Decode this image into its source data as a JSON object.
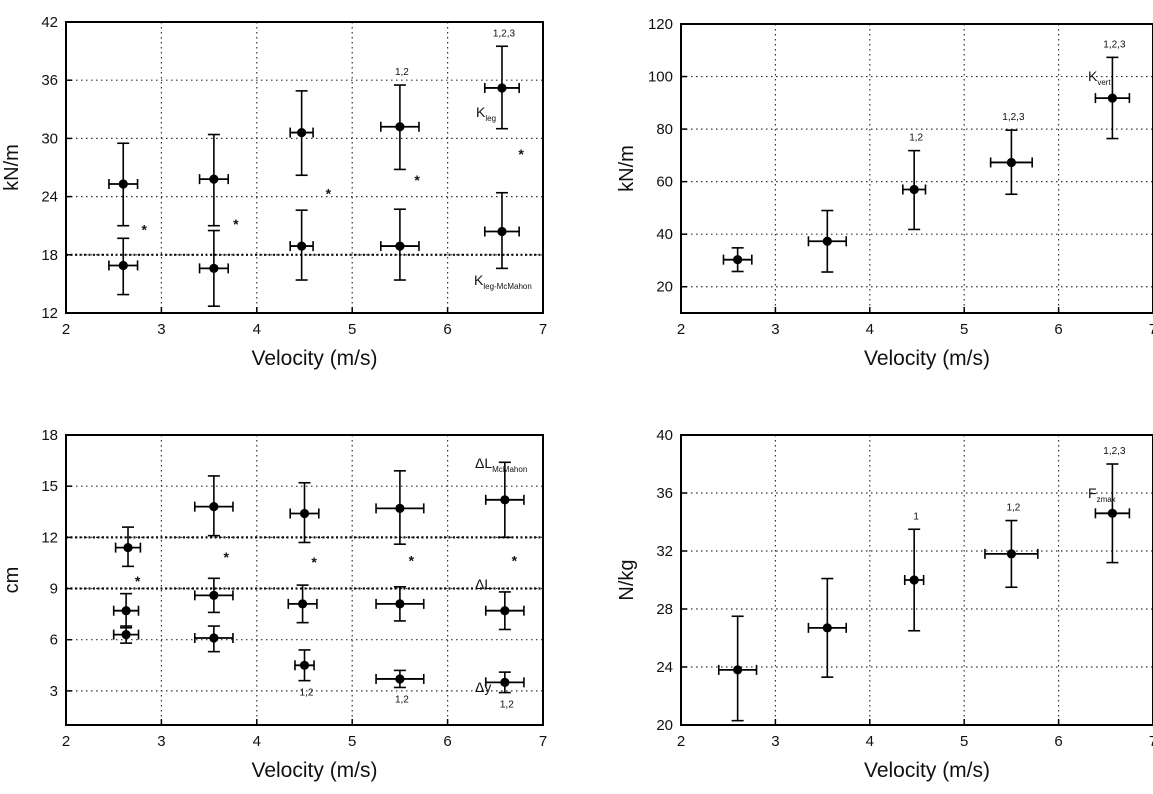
{
  "chart_data": [
    {
      "type": "scatter",
      "panel": "top-left",
      "xlabel": "Velocity (m/s)",
      "ylabel": "kN/m",
      "xlim": [
        2,
        7
      ],
      "ylim": [
        12,
        42
      ],
      "xticks": [
        2,
        3,
        4,
        5,
        6,
        7
      ],
      "yticks": [
        12,
        18,
        24,
        30,
        36,
        42
      ],
      "grid": "dotted",
      "hlines": [
        18
      ],
      "series": [
        {
          "label": "K",
          "label_sub": "leg",
          "points": [
            {
              "x": 2.6,
              "y": 25.3,
              "xerr": 0.15,
              "ylo": 21.0,
              "yhi": 29.5
            },
            {
              "x": 3.55,
              "y": 25.8,
              "xerr": 0.15,
              "ylo": 21.0,
              "yhi": 30.4
            },
            {
              "x": 4.47,
              "y": 30.6,
              "xerr": 0.12,
              "ylo": 26.2,
              "yhi": 34.9
            },
            {
              "x": 5.5,
              "y": 31.2,
              "xerr": 0.2,
              "ylo": 26.8,
              "yhi": 35.5,
              "note": "1,2"
            },
            {
              "x": 6.57,
              "y": 35.2,
              "xerr": 0.18,
              "ylo": 31.0,
              "yhi": 39.5,
              "note": "1,2,3"
            }
          ]
        },
        {
          "label": "K",
          "label_sub": "leg-McMahon",
          "points": [
            {
              "x": 2.6,
              "y": 16.9,
              "xerr": 0.15,
              "ylo": 13.9,
              "yhi": 19.7
            },
            {
              "x": 3.55,
              "y": 16.6,
              "xerr": 0.15,
              "ylo": 12.7,
              "yhi": 20.5
            },
            {
              "x": 4.47,
              "y": 18.9,
              "xerr": 0.12,
              "ylo": 15.4,
              "yhi": 22.6
            },
            {
              "x": 5.5,
              "y": 18.9,
              "xerr": 0.2,
              "ylo": 15.4,
              "yhi": 22.7
            },
            {
              "x": 6.57,
              "y": 20.4,
              "xerr": 0.18,
              "ylo": 16.6,
              "yhi": 24.4
            }
          ]
        }
      ],
      "stars": [
        {
          "x": 2.82,
          "y": 20.7
        },
        {
          "x": 3.78,
          "y": 21.3
        },
        {
          "x": 4.75,
          "y": 24.4
        },
        {
          "x": 5.68,
          "y": 25.8
        },
        {
          "x": 6.77,
          "y": 28.5
        }
      ]
    },
    {
      "type": "scatter",
      "panel": "top-right",
      "xlabel": "Velocity (m/s)",
      "ylabel": "kN/m",
      "xlim": [
        2,
        7
      ],
      "ylim": [
        10,
        120
      ],
      "xticks": [
        2,
        3,
        4,
        5,
        6,
        7
      ],
      "yticks": [
        20,
        40,
        60,
        80,
        100,
        120
      ],
      "grid": "dotted",
      "hlines": [],
      "series": [
        {
          "label": "K",
          "label_sub": "vert",
          "points": [
            {
              "x": 2.6,
              "y": 30.3,
              "xerr": 0.15,
              "ylo": 25.8,
              "yhi": 34.8
            },
            {
              "x": 3.55,
              "y": 37.3,
              "xerr": 0.2,
              "ylo": 25.6,
              "yhi": 49.0
            },
            {
              "x": 4.47,
              "y": 57.0,
              "xerr": 0.12,
              "ylo": 41.8,
              "yhi": 71.8,
              "note": "1,2"
            },
            {
              "x": 5.5,
              "y": 67.3,
              "xerr": 0.22,
              "ylo": 55.2,
              "yhi": 79.6,
              "note": "1,2,3"
            },
            {
              "x": 6.57,
              "y": 91.8,
              "xerr": 0.18,
              "ylo": 76.4,
              "yhi": 107.3,
              "note": "1,2,3"
            }
          ]
        }
      ],
      "stars": []
    },
    {
      "type": "scatter",
      "panel": "bottom-left",
      "xlabel": "Velocity (m/s)",
      "ylabel": "cm",
      "xlim": [
        2,
        7
      ],
      "ylim": [
        1,
        18
      ],
      "xticks": [
        2,
        3,
        4,
        5,
        6,
        7
      ],
      "yticks": [
        3,
        6,
        9,
        12,
        15,
        18
      ],
      "grid": "dotted",
      "hlines": [
        12,
        9
      ],
      "series": [
        {
          "label": "ΔL",
          "label_sub": "McMahon",
          "points": [
            {
              "x": 2.65,
              "y": 11.4,
              "xerr": 0.13,
              "ylo": 10.3,
              "yhi": 12.6
            },
            {
              "x": 3.55,
              "y": 13.8,
              "xerr": 0.2,
              "ylo": 12.1,
              "yhi": 15.6
            },
            {
              "x": 4.5,
              "y": 13.4,
              "xerr": 0.15,
              "ylo": 11.7,
              "yhi": 15.2
            },
            {
              "x": 5.5,
              "y": 13.7,
              "xerr": 0.25,
              "ylo": 11.6,
              "yhi": 15.9
            },
            {
              "x": 6.6,
              "y": 14.2,
              "xerr": 0.2,
              "ylo": 12.0,
              "yhi": 16.4
            }
          ]
        },
        {
          "label": "ΔL",
          "label_sub": "",
          "points": [
            {
              "x": 2.63,
              "y": 7.7,
              "xerr": 0.13,
              "ylo": 6.7,
              "yhi": 8.7
            },
            {
              "x": 3.55,
              "y": 8.6,
              "xerr": 0.2,
              "ylo": 7.6,
              "yhi": 9.6
            },
            {
              "x": 4.48,
              "y": 8.1,
              "xerr": 0.15,
              "ylo": 7.0,
              "yhi": 9.2
            },
            {
              "x": 5.5,
              "y": 8.1,
              "xerr": 0.25,
              "ylo": 7.1,
              "yhi": 9.1
            },
            {
              "x": 6.6,
              "y": 7.7,
              "xerr": 0.2,
              "ylo": 6.6,
              "yhi": 8.8
            }
          ]
        },
        {
          "label": "Δy",
          "label_sub": "",
          "points": [
            {
              "x": 2.63,
              "y": 6.3,
              "xerr": 0.13,
              "ylo": 5.8,
              "yhi": 6.8
            },
            {
              "x": 3.55,
              "y": 6.1,
              "xerr": 0.2,
              "ylo": 5.3,
              "yhi": 6.8
            },
            {
              "x": 4.5,
              "y": 4.5,
              "xerr": 0.1,
              "ylo": 3.6,
              "yhi": 5.4,
              "note": "1,2"
            },
            {
              "x": 5.5,
              "y": 3.7,
              "xerr": 0.25,
              "ylo": 3.2,
              "yhi": 4.2,
              "note": "1,2"
            },
            {
              "x": 6.6,
              "y": 3.5,
              "xerr": 0.2,
              "ylo": 2.9,
              "yhi": 4.1,
              "note": "1,2"
            }
          ]
        }
      ],
      "stars": [
        {
          "x": 2.75,
          "y": 9.5
        },
        {
          "x": 3.68,
          "y": 10.9
        },
        {
          "x": 4.6,
          "y": 10.6
        },
        {
          "x": 5.62,
          "y": 10.7
        },
        {
          "x": 6.7,
          "y": 10.7
        }
      ]
    },
    {
      "type": "scatter",
      "panel": "bottom-right",
      "xlabel": "Velocity (m/s)",
      "ylabel": "N/kg",
      "xlim": [
        2,
        7
      ],
      "ylim": [
        20,
        40
      ],
      "xticks": [
        2,
        3,
        4,
        5,
        6,
        7
      ],
      "yticks": [
        20,
        24,
        28,
        32,
        36,
        40
      ],
      "grid": "dotted",
      "hlines": [],
      "series": [
        {
          "label": "F",
          "label_sub": "zmax",
          "points": [
            {
              "x": 2.6,
              "y": 23.8,
              "xerr": 0.2,
              "ylo": 20.3,
              "yhi": 27.5
            },
            {
              "x": 3.55,
              "y": 26.7,
              "xerr": 0.2,
              "ylo": 23.3,
              "yhi": 30.1
            },
            {
              "x": 4.47,
              "y": 30.0,
              "xerr": 0.1,
              "ylo": 26.5,
              "yhi": 33.5,
              "note": "1"
            },
            {
              "x": 5.5,
              "y": 31.8,
              "xerr": 0.28,
              "ylo": 29.5,
              "yhi": 34.1,
              "note": "1,2"
            },
            {
              "x": 6.57,
              "y": 34.6,
              "xerr": 0.18,
              "ylo": 31.2,
              "yhi": 38.0,
              "note": "1,2,3"
            }
          ]
        }
      ],
      "stars": []
    }
  ]
}
